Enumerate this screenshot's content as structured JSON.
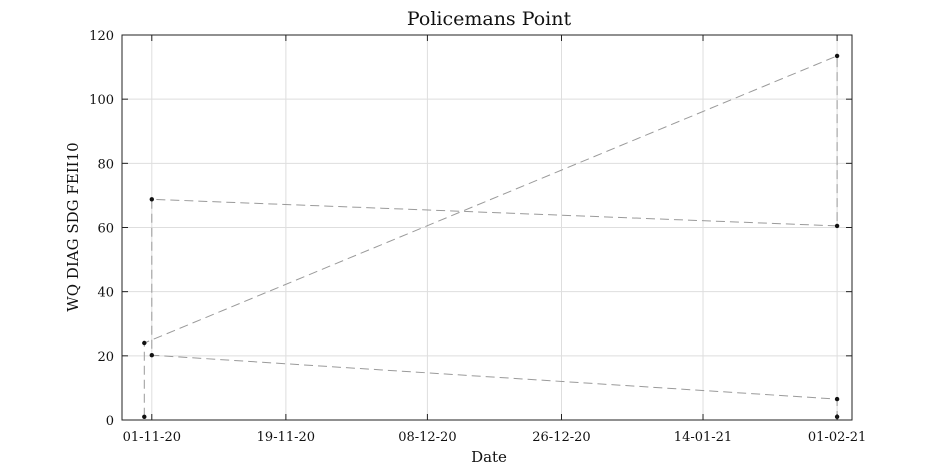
{
  "chart_data": {
    "type": "line",
    "title": "Policemans Point",
    "xlabel": "Date",
    "ylabel": "WQ DIAG SDG FEII10",
    "xlim": [
      "2020-10-28",
      "2021-02-03"
    ],
    "ylim": [
      0,
      120
    ],
    "x_ticks": [
      "01-11-20",
      "19-11-20",
      "08-12-20",
      "26-12-20",
      "14-01-21",
      "01-02-21"
    ],
    "y_ticks": [
      0,
      20,
      40,
      60,
      80,
      100,
      120
    ],
    "grid": true,
    "line_style": "dashed",
    "series": [
      {
        "points": [
          {
            "x": "2020-10-31",
            "y": 1
          },
          {
            "x": "2020-10-31",
            "y": 24
          },
          {
            "x": "2021-02-01",
            "y": 113.5
          },
          {
            "x": "2021-02-01",
            "y": 60.5
          },
          {
            "x": "2020-11-01",
            "y": 68.8
          },
          {
            "x": "2020-11-01",
            "y": 20.2
          },
          {
            "x": "2021-02-01",
            "y": 6.5
          },
          {
            "x": "2021-02-01",
            "y": 1
          }
        ]
      }
    ]
  },
  "colors": {
    "line": "#9a9a9a",
    "marker": "#111111",
    "grid": "#dedede"
  }
}
